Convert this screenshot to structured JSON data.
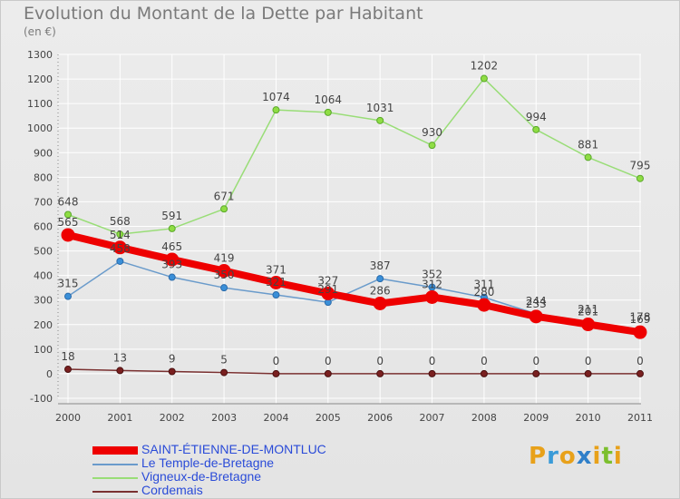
{
  "title": "Evolution du Montant de la Dette par Habitant",
  "subtitle": "(en €)",
  "logo": {
    "text": "Proxiti",
    "colors": [
      "#e8a11a",
      "#3a9bd8",
      "#e8a11a",
      "#2f7fc9",
      "#e8a11a",
      "#7cbf2e",
      "#e8a11a"
    ]
  },
  "chart_data": {
    "type": "line",
    "title": "Evolution du Montant de la Dette par Habitant",
    "subtitle": "(en €)",
    "xlabel": "",
    "ylabel": "",
    "categories": [
      "2000",
      "2001",
      "2002",
      "2003",
      "2004",
      "2005",
      "2006",
      "2007",
      "2008",
      "2009",
      "2010",
      "2011"
    ],
    "ylim": [
      -100,
      1300
    ],
    "yticks": [
      -100,
      0,
      100,
      200,
      300,
      400,
      500,
      600,
      700,
      800,
      900,
      1000,
      1100,
      1200,
      1300
    ],
    "grid": true,
    "legend_position": "bottom-left",
    "series": [
      {
        "name": "SAINT-ÉTIENNE-DE-MONTLUC",
        "color": "#ee0000",
        "values": [
          565,
          514,
          465,
          419,
          371,
          327,
          286,
          312,
          280,
          233,
          201,
          169
        ]
      },
      {
        "name": "Le Temple-de-Bretagne",
        "color": "#6a9bcb",
        "values": [
          315,
          458,
          393,
          350,
          321,
          291,
          387,
          352,
          311,
          244,
          211,
          178
        ]
      },
      {
        "name": "Vigneux-de-Bretagne",
        "color": "#99dd77",
        "values": [
          648,
          568,
          591,
          671,
          1074,
          1064,
          1031,
          930,
          1202,
          994,
          881,
          795
        ]
      },
      {
        "name": "Cordemais",
        "color": "#7a3030",
        "values": [
          18,
          13,
          9,
          5,
          0,
          0,
          0,
          0,
          0,
          0,
          0,
          0
        ]
      }
    ]
  }
}
